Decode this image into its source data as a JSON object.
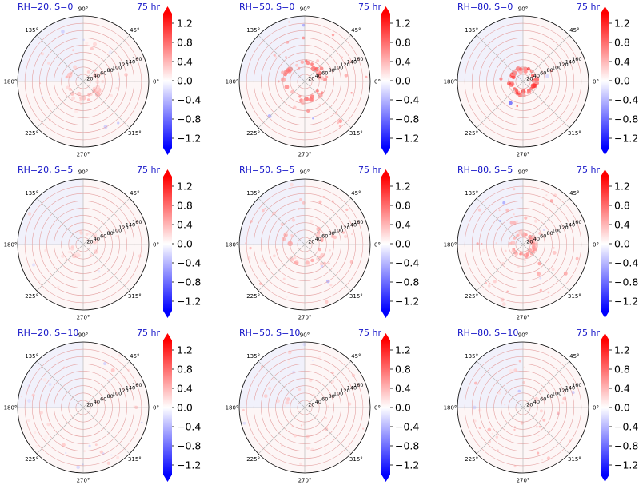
{
  "figure": {
    "colors": {
      "title": "#1414c8",
      "cmap_neg": "#0000ff",
      "cmap_pos": "#ff0000",
      "grid": "#b0b0b0"
    },
    "colorbar": {
      "ticks": [
        "1.2",
        "0.8",
        "0.4",
        "0.0",
        "−0.4",
        "−0.8",
        "−1.2"
      ],
      "tick_values": [
        1.2,
        0.8,
        0.4,
        0.0,
        -0.4,
        -0.8,
        -1.2
      ],
      "range": [
        -1.4,
        1.4
      ],
      "extend": "both"
    },
    "radial_ticks": [
      "20",
      "40",
      "60",
      "80",
      "100",
      "120",
      "140",
      "160"
    ],
    "radial_values": [
      20,
      40,
      60,
      80,
      100,
      120,
      140,
      160
    ],
    "rmax": 180,
    "angle_ticks": [
      "0°",
      "45°",
      "90°",
      "135°",
      "180°",
      "225°",
      "270°",
      "315°"
    ],
    "angle_values": [
      0,
      45,
      90,
      135,
      180,
      225,
      270,
      315
    ]
  },
  "chart_data": [
    {
      "type": "heatmap",
      "projection": "polar",
      "title_left": "RH=20, S=0",
      "title_right": "75 hr",
      "features": "diffuse ring of weak positive values near r≈30–60, scattered weak spots"
    },
    {
      "type": "heatmap",
      "projection": "polar",
      "title_left": "RH=50, S=0",
      "title_right": "75 hr",
      "features": "pronounced positive ring r≈40–60, streaks toward lower-left"
    },
    {
      "type": "heatmap",
      "projection": "polar",
      "title_left": "RH=80, S=0",
      "title_right": "75 hr",
      "features": "compact positive ring r≈30–40 near center"
    },
    {
      "type": "heatmap",
      "projection": "polar",
      "title_left": "RH=20, S=5",
      "title_right": "75 hr",
      "features": "weak diffuse positive values, faint negative near 200–250°"
    },
    {
      "type": "heatmap",
      "projection": "polar",
      "title_left": "RH=50, S=5",
      "title_right": "75 hr",
      "features": "positive arcs on left side, streak near 315° at r≈150"
    },
    {
      "type": "heatmap",
      "projection": "polar",
      "title_left": "RH=80, S=5",
      "title_right": "75 hr",
      "features": "positive ring r≈30, scattered positives throughout"
    },
    {
      "type": "heatmap",
      "projection": "polar",
      "title_left": "RH=20, S=10",
      "title_right": "75 hr",
      "features": "positive features on right side near 0° at r≈150–170"
    },
    {
      "type": "heatmap",
      "projection": "polar",
      "title_left": "RH=50, S=10",
      "title_right": "75 hr",
      "features": "scattered positive streaks in upper half"
    },
    {
      "type": "heatmap",
      "projection": "polar",
      "title_left": "RH=80, S=10",
      "title_right": "75 hr",
      "features": "positive features concentrated toward 315–360° at r≈60–160"
    }
  ]
}
